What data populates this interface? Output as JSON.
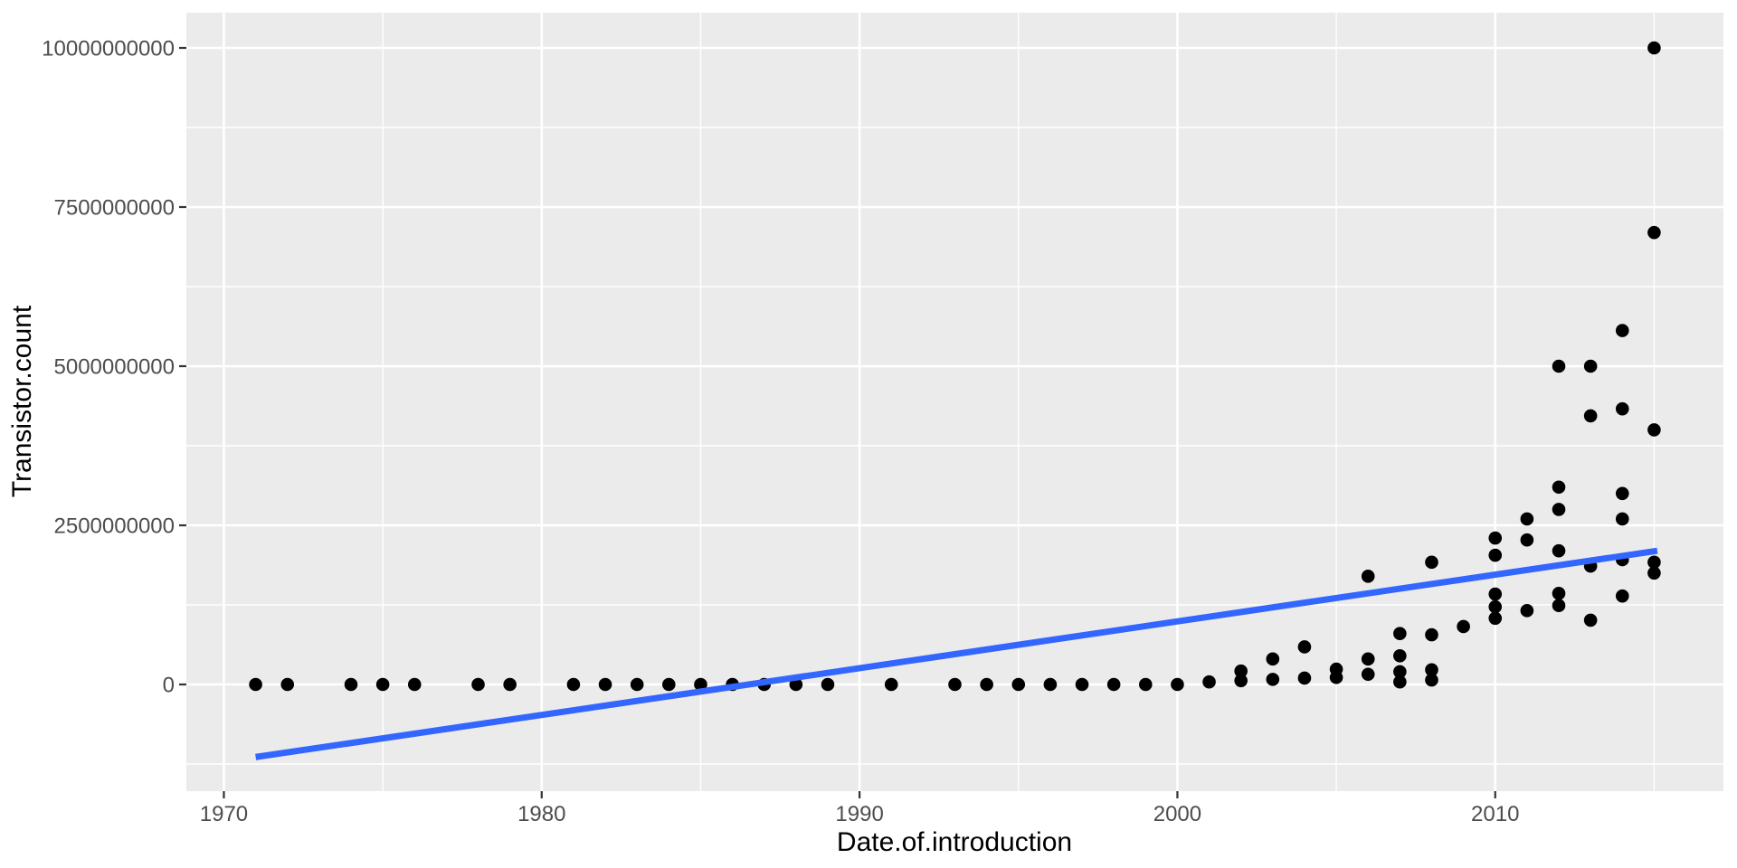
{
  "figure": {
    "background": "#FFFFFF",
    "panel_background": "#EBEBEB",
    "grid_color": "#FFFFFF",
    "point_color": "#000000",
    "smooth_line_color": "#3366FF",
    "axis_text_color": "#4D4D4D",
    "tick_mark_color": "#333333",
    "axis_title_color": "#000000"
  },
  "chart_data": {
    "type": "scatter",
    "title": "",
    "xlabel": "Date.of.introduction",
    "ylabel": "Transistor.count",
    "legend": false,
    "grid": true,
    "xlim": [
      1968.82,
      2017.18
    ],
    "ylim": [
      -1676000000,
      10554000000
    ],
    "x_ticks": {
      "values": [
        1970,
        1980,
        1990,
        2000,
        2010
      ],
      "labels": [
        "1970",
        "1980",
        "1990",
        "2000",
        "2010"
      ]
    },
    "x_minor": [
      1975,
      1985,
      1995,
      2005,
      2015
    ],
    "y_ticks": {
      "values": [
        0,
        2500000000,
        5000000000,
        7500000000,
        10000000000
      ],
      "labels": [
        "0",
        "2500000000",
        "5000000000",
        "7500000000",
        "10000000000"
      ]
    },
    "y_minor": [
      -1250000000,
      1250000000,
      3750000000,
      6250000000,
      8750000000
    ],
    "points": [
      [
        1971,
        0
      ],
      [
        1972,
        0
      ],
      [
        1974,
        0
      ],
      [
        1975,
        0
      ],
      [
        1976,
        0
      ],
      [
        1978,
        0
      ],
      [
        1979,
        0
      ],
      [
        1981,
        0
      ],
      [
        1982,
        0
      ],
      [
        1983,
        0
      ],
      [
        1984,
        0
      ],
      [
        1985,
        0
      ],
      [
        1986,
        0
      ],
      [
        1987,
        0
      ],
      [
        1988,
        0
      ],
      [
        1989,
        0
      ],
      [
        1991,
        0
      ],
      [
        1993,
        0
      ],
      [
        1994,
        0
      ],
      [
        1995,
        0
      ],
      [
        1996,
        0
      ],
      [
        1997,
        0
      ],
      [
        1998,
        0
      ],
      [
        1999,
        0
      ],
      [
        2000,
        0
      ],
      [
        2001,
        40000000
      ],
      [
        2002,
        210000000
      ],
      [
        2002,
        60000000
      ],
      [
        2003,
        400000000
      ],
      [
        2003,
        80000000
      ],
      [
        2004,
        590000000
      ],
      [
        2004,
        100000000
      ],
      [
        2005,
        240000000
      ],
      [
        2005,
        110000000
      ],
      [
        2006,
        1700000000
      ],
      [
        2006,
        400000000
      ],
      [
        2006,
        160000000
      ],
      [
        2007,
        800000000
      ],
      [
        2007,
        450000000
      ],
      [
        2007,
        200000000
      ],
      [
        2007,
        40000000
      ],
      [
        2008,
        1920000000
      ],
      [
        2008,
        780000000
      ],
      [
        2008,
        230000000
      ],
      [
        2008,
        70000000
      ],
      [
        2009,
        910000000
      ],
      [
        2010,
        2300000000
      ],
      [
        2010,
        2030000000
      ],
      [
        2010,
        1420000000
      ],
      [
        2010,
        1220000000
      ],
      [
        2010,
        1040000000
      ],
      [
        2011,
        2600000000
      ],
      [
        2011,
        2270000000
      ],
      [
        2011,
        1160000000
      ],
      [
        2012,
        5000000000
      ],
      [
        2012,
        3100000000
      ],
      [
        2012,
        2750000000
      ],
      [
        2012,
        2100000000
      ],
      [
        2012,
        1430000000
      ],
      [
        2012,
        1240000000
      ],
      [
        2013,
        5000000000
      ],
      [
        2013,
        4220000000
      ],
      [
        2013,
        1860000000
      ],
      [
        2013,
        1010000000
      ],
      [
        2014,
        5560000000
      ],
      [
        2014,
        4330000000
      ],
      [
        2014,
        3000000000
      ],
      [
        2014,
        2600000000
      ],
      [
        2014,
        1960000000
      ],
      [
        2014,
        1390000000
      ],
      [
        2015,
        10000000000
      ],
      [
        2015,
        7100000000
      ],
      [
        2015,
        4000000000
      ],
      [
        2015,
        1920000000
      ],
      [
        2015,
        1750000000
      ]
    ],
    "trend_line": {
      "type": "linear",
      "x": [
        1971,
        2015.1
      ],
      "y": [
        -1140000000,
        2100000000
      ]
    }
  }
}
